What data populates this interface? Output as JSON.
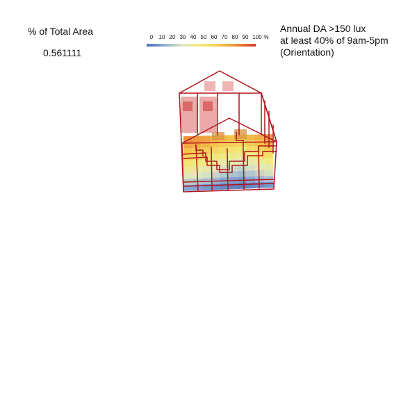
{
  "metric": {
    "label": "% of Total Area",
    "value": "0.561111"
  },
  "title": {
    "line1": "Annual DA >150 lux",
    "line2": "at least 40% of 9am-5pm",
    "line3": "(Orientation)"
  },
  "legend": {
    "ticks": [
      "0",
      "10",
      "20",
      "30",
      "40",
      "50",
      "60",
      "70",
      "80",
      "90",
      "100",
      "%"
    ],
    "colors": [
      "#4a6fb5",
      "#8fb0d8",
      "#dfe7bf",
      "#f2ea7a",
      "#f5c84c",
      "#ef8a3a",
      "#d63a2b"
    ]
  },
  "model": {
    "frame_color": "#b3121d",
    "window_fill": "#e68c8c",
    "window_accent": "#d14545",
    "floor_grid": {
      "rows": 9,
      "cols": 10,
      "values": [
        [
          0.82,
          0.8,
          0.78,
          0.72,
          0.7,
          0.68,
          0.66,
          0.7,
          0.74,
          0.78
        ],
        [
          0.76,
          0.74,
          0.72,
          0.68,
          0.64,
          0.62,
          0.6,
          0.64,
          0.68,
          0.72
        ],
        [
          0.68,
          0.66,
          0.64,
          0.6,
          0.56,
          0.54,
          0.52,
          0.56,
          0.6,
          0.64
        ],
        [
          0.6,
          0.58,
          0.56,
          0.52,
          0.48,
          0.46,
          0.44,
          0.48,
          0.52,
          0.56
        ],
        [
          0.52,
          0.5,
          0.48,
          0.44,
          0.4,
          0.38,
          0.36,
          0.4,
          0.44,
          0.48
        ],
        [
          0.44,
          0.42,
          0.4,
          0.36,
          0.32,
          0.3,
          0.28,
          0.32,
          0.36,
          0.4
        ],
        [
          0.36,
          0.34,
          0.32,
          0.28,
          0.24,
          0.22,
          0.2,
          0.24,
          0.28,
          0.32
        ],
        [
          0.26,
          0.24,
          0.22,
          0.18,
          0.14,
          0.12,
          0.1,
          0.14,
          0.18,
          0.22
        ],
        [
          0.14,
          0.12,
          0.1,
          0.08,
          0.06,
          0.05,
          0.04,
          0.06,
          0.08,
          0.1
        ]
      ]
    }
  }
}
